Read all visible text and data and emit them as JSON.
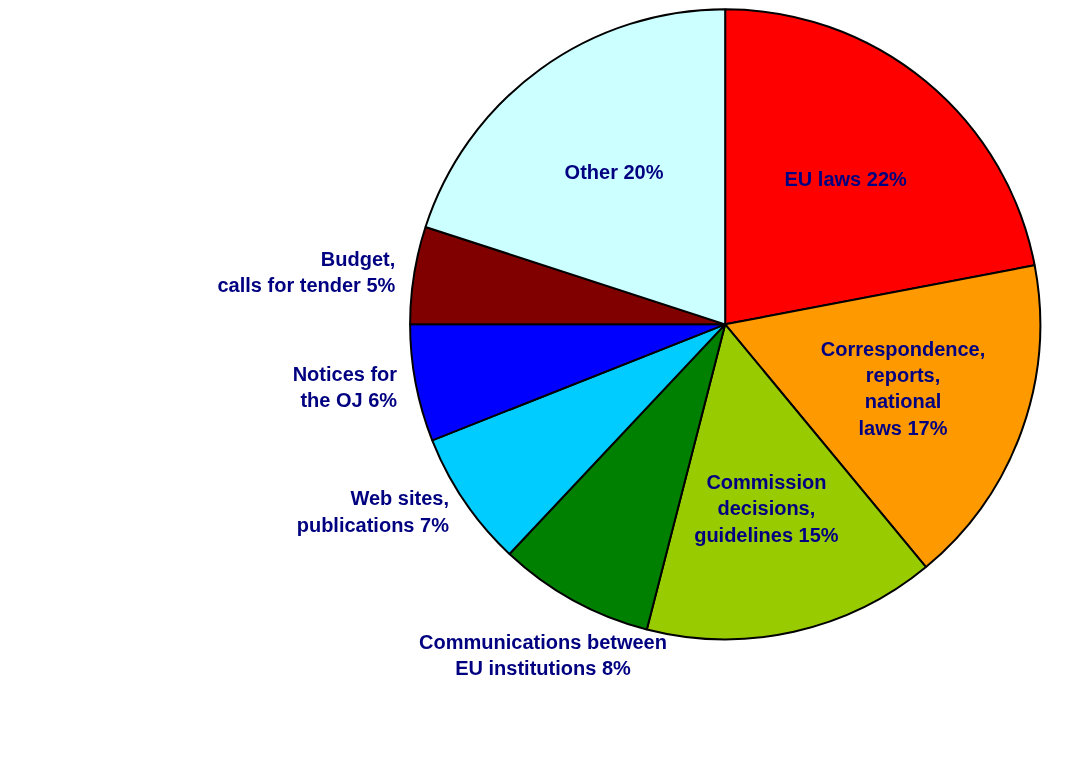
{
  "chart_data": {
    "type": "pie",
    "categories": [
      "EU laws",
      "Correspondence,\nreports,\nnational\nlaws",
      "Commission\ndecisions,\nguidelines",
      "Communications between\nEU institutions",
      "Web sites,\npublications",
      "Notices for\nthe OJ",
      "Budget,\ncalls for tender",
      "Other"
    ],
    "values": [
      22,
      17,
      15,
      8,
      7,
      6,
      5,
      20
    ],
    "value_labels": [
      "22%",
      "17%",
      "15%",
      "8%",
      "7%",
      "6%",
      "5%",
      "20%"
    ],
    "colors": [
      "#ff0000",
      "#ff9900",
      "#99cc00",
      "#008000",
      "#00ccff",
      "#0000ff",
      "#800000",
      "#ccffff"
    ],
    "legend": false
  }
}
